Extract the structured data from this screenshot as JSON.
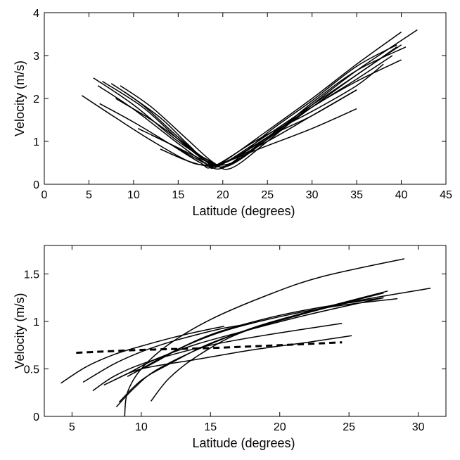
{
  "chart_data": [
    {
      "type": "line",
      "xlabel": "Latitude (degrees)",
      "ylabel": "Velocity (m/s)",
      "xlim": [
        0,
        45
      ],
      "ylim": [
        0,
        4
      ],
      "xticks": [
        0,
        5,
        10,
        15,
        20,
        25,
        30,
        35,
        40,
        45
      ],
      "yticks": [
        0,
        1,
        2,
        3,
        4
      ],
      "grid": false,
      "series": [
        {
          "style": "solid",
          "x": [
            4.2,
            8,
            12,
            16,
            18,
            20,
            25,
            30,
            35
          ],
          "y": [
            2.07,
            1.55,
            1.02,
            0.55,
            0.45,
            0.5,
            0.9,
            1.3,
            1.76
          ]
        },
        {
          "style": "solid",
          "x": [
            5.5,
            10,
            15,
            18.5,
            20,
            25,
            30,
            35,
            40
          ],
          "y": [
            2.48,
            1.85,
            1.0,
            0.55,
            0.48,
            1.1,
            1.8,
            2.4,
            2.9
          ]
        },
        {
          "style": "solid",
          "x": [
            6,
            10,
            15,
            18,
            19.5,
            25,
            30,
            35,
            39.5
          ],
          "y": [
            2.3,
            1.75,
            0.95,
            0.5,
            0.42,
            1.15,
            1.85,
            2.55,
            3.2
          ]
        },
        {
          "style": "solid",
          "x": [
            6.5,
            11,
            15,
            18,
            20,
            25,
            30,
            35,
            40
          ],
          "y": [
            2.4,
            1.8,
            1.05,
            0.55,
            0.38,
            1.05,
            1.8,
            2.55,
            3.25
          ]
        },
        {
          "style": "solid",
          "x": [
            7.5,
            11,
            15,
            18,
            20.5,
            25,
            30,
            35,
            40.5
          ],
          "y": [
            2.35,
            1.85,
            1.1,
            0.6,
            0.42,
            1.05,
            1.9,
            2.65,
            3.2
          ]
        },
        {
          "style": "solid",
          "x": [
            8.5,
            12,
            16,
            19,
            21,
            25,
            30,
            35,
            41.8
          ],
          "y": [
            2.3,
            1.8,
            1.05,
            0.5,
            0.38,
            1.0,
            1.85,
            2.65,
            3.6
          ]
        },
        {
          "style": "solid",
          "x": [
            9,
            13,
            16,
            18.5,
            20,
            25,
            30,
            35,
            40
          ],
          "y": [
            2.15,
            1.55,
            0.95,
            0.48,
            0.52,
            1.25,
            2.0,
            2.8,
            3.55
          ]
        },
        {
          "style": "solid",
          "x": [
            6.2,
            10,
            14,
            17.5,
            19,
            24,
            30,
            35,
            38
          ],
          "y": [
            1.88,
            1.45,
            0.95,
            0.5,
            0.42,
            1.05,
            1.7,
            2.3,
            2.8
          ]
        },
        {
          "style": "solid",
          "x": [
            8,
            12,
            16,
            18.5,
            20,
            25,
            30,
            35
          ],
          "y": [
            2.0,
            1.5,
            0.9,
            0.5,
            0.48,
            1.0,
            1.6,
            2.2
          ]
        },
        {
          "style": "solid",
          "x": [
            10.5,
            14,
            17,
            19,
            21,
            25,
            30,
            35,
            39.5
          ],
          "y": [
            1.3,
            0.95,
            0.6,
            0.42,
            0.5,
            1.2,
            1.95,
            2.75,
            3.25
          ]
        },
        {
          "style": "solid",
          "x": [
            12,
            15,
            18,
            20,
            22,
            26,
            30,
            35,
            39
          ],
          "y": [
            1.15,
            0.85,
            0.55,
            0.45,
            0.62,
            1.25,
            1.8,
            2.45,
            3.0
          ]
        },
        {
          "style": "solid",
          "x": [
            13,
            16,
            18.5,
            20,
            22,
            26,
            30,
            35
          ],
          "y": [
            0.82,
            0.55,
            0.42,
            0.5,
            0.7,
            1.2,
            1.6,
            2.2
          ]
        }
      ]
    },
    {
      "type": "line",
      "xlabel": "Latitude (degrees)",
      "ylabel": "Velocity (m/s)",
      "xlim": [
        3,
        32
      ],
      "ylim": [
        0,
        1.8
      ],
      "xticks": [
        5,
        10,
        15,
        20,
        25,
        30
      ],
      "yticks": [
        0,
        0.5,
        1,
        1.5
      ],
      "grid": false,
      "series": [
        {
          "style": "dashed",
          "x": [
            5.3,
            10,
            15,
            20,
            24.5
          ],
          "y": [
            0.67,
            0.7,
            0.72,
            0.75,
            0.78
          ]
        },
        {
          "style": "solid",
          "x": [
            4.2,
            6,
            8,
            10,
            12,
            14,
            16
          ],
          "y": [
            0.35,
            0.52,
            0.65,
            0.74,
            0.82,
            0.89,
            0.95
          ]
        },
        {
          "style": "solid",
          "x": [
            5.8,
            8,
            10,
            12,
            14,
            16,
            18
          ],
          "y": [
            0.36,
            0.55,
            0.68,
            0.78,
            0.86,
            0.93,
            0.98
          ]
        },
        {
          "style": "solid",
          "x": [
            6.5,
            8,
            10,
            13,
            16,
            20,
            24.5
          ],
          "y": [
            0.27,
            0.42,
            0.55,
            0.68,
            0.78,
            0.88,
            0.98
          ]
        },
        {
          "style": "solid",
          "x": [
            7.3,
            9,
            11,
            14,
            18,
            22,
            27.5
          ],
          "y": [
            0.33,
            0.45,
            0.6,
            0.76,
            0.92,
            1.07,
            1.25
          ]
        },
        {
          "style": "solid",
          "x": [
            8.2,
            9.5,
            11,
            14,
            18,
            22,
            27.8
          ],
          "y": [
            0.1,
            0.3,
            0.48,
            0.7,
            0.93,
            1.1,
            1.32
          ]
        },
        {
          "style": "solid",
          "x": [
            8.4,
            10,
            12,
            15,
            19,
            23,
            27.5
          ],
          "y": [
            0.15,
            0.38,
            0.55,
            0.77,
            0.97,
            1.13,
            1.3
          ]
        },
        {
          "style": "solid",
          "x": [
            8.8,
            9,
            10,
            12,
            15,
            19,
            23,
            29
          ],
          "y": [
            0.0,
            0.25,
            0.5,
            0.76,
            1.02,
            1.27,
            1.47,
            1.66
          ]
        },
        {
          "style": "solid",
          "x": [
            9,
            10,
            12,
            15,
            19,
            23,
            27.5
          ],
          "y": [
            0.42,
            0.5,
            0.66,
            0.86,
            1.03,
            1.15,
            1.25
          ]
        },
        {
          "style": "solid",
          "x": [
            9.5,
            11,
            13,
            16,
            20,
            24,
            28.5
          ],
          "y": [
            0.46,
            0.57,
            0.73,
            0.9,
            1.05,
            1.16,
            1.24
          ]
        },
        {
          "style": "solid",
          "x": [
            10.7,
            12,
            14,
            17,
            21,
            25,
            30.9
          ],
          "y": [
            0.16,
            0.4,
            0.63,
            0.87,
            1.05,
            1.2,
            1.35
          ]
        },
        {
          "style": "solid",
          "x": [
            8,
            10,
            14,
            18,
            22,
            25.2
          ],
          "y": [
            0.38,
            0.5,
            0.6,
            0.7,
            0.78,
            0.85
          ]
        }
      ]
    }
  ]
}
